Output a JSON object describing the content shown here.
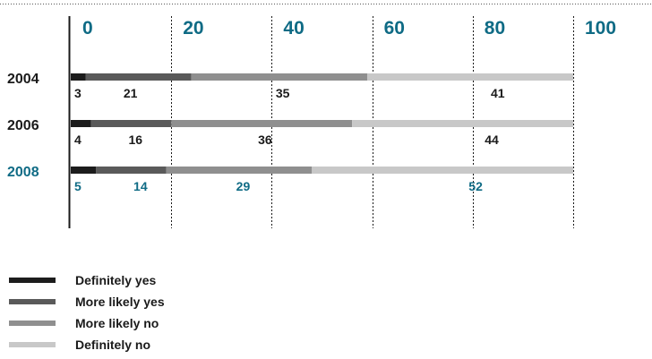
{
  "chart_data": {
    "type": "bar",
    "orientation": "horizontal",
    "stacked": true,
    "categories": [
      "2004",
      "2006",
      "2008"
    ],
    "series": [
      {
        "name": "Definitely yes",
        "values": [
          3,
          4,
          5
        ],
        "color": "#1c1c1c"
      },
      {
        "name": "More likely yes",
        "values": [
          21,
          16,
          14
        ],
        "color": "#5a5a5a"
      },
      {
        "name": "More likely no",
        "values": [
          35,
          36,
          29
        ],
        "color": "#8f8f8f"
      },
      {
        "name": "Definitely no",
        "values": [
          41,
          44,
          52
        ],
        "color": "#c8c8c8"
      }
    ],
    "xticks": [
      0,
      20,
      40,
      60,
      80,
      100
    ],
    "xlim": [
      0,
      100
    ],
    "grid": true,
    "legend_position": "bottom-left",
    "accent_color": "#0f6b85",
    "text_color": "#1a1a1a",
    "highlight_category": "2008"
  }
}
